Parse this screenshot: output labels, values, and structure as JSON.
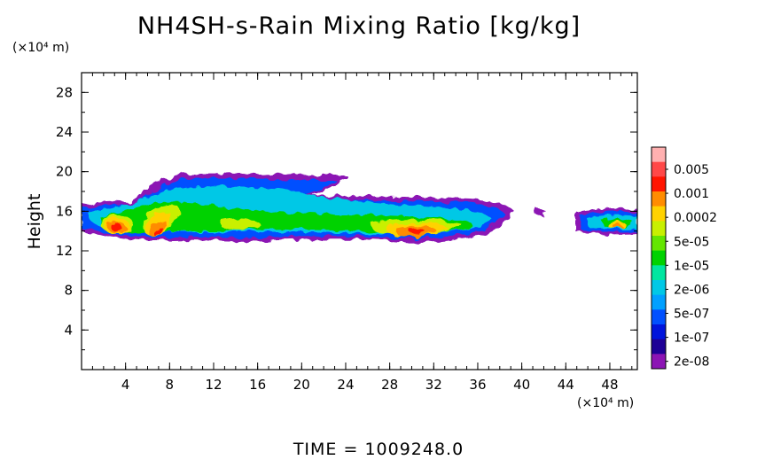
{
  "chart_data": {
    "type": "heatmap",
    "title": "NH4SH-s-Rain Mixing Ratio [kg/kg]",
    "xlabel": "",
    "ylabel": "Height",
    "x_unit": "(×10⁴ m)",
    "y_unit": "(×10⁴ m)",
    "xlim": [
      0,
      50.5
    ],
    "ylim": [
      0,
      30
    ],
    "x_ticks": [
      4,
      8,
      12,
      16,
      20,
      24,
      28,
      32,
      36,
      40,
      44,
      48
    ],
    "y_ticks": [
      4,
      8,
      12,
      16,
      20,
      24,
      28
    ],
    "colorbar": {
      "labels": [
        "0.005",
        "0.001",
        "0.0002",
        "5e-05",
        "1e-05",
        "2e-06",
        "5e-07",
        "1e-07",
        "2e-08"
      ],
      "colors": [
        "#ffb0b0",
        "#ff4848",
        "#ff1400",
        "#ff8c00",
        "#ffd200",
        "#c8f000",
        "#64e600",
        "#00d200",
        "#00e6a0",
        "#00c8e6",
        "#00a0ff",
        "#0050ff",
        "#0014dc",
        "#1e0096",
        "#8c14b4"
      ]
    },
    "regions": [
      {
        "name": "main-cloud-band",
        "x_range": [
          0,
          39.5
        ],
        "y_range": [
          12.8,
          19.8
        ],
        "core_level": "0.001",
        "core_centers_x": [
          3.5,
          7,
          30
        ]
      },
      {
        "name": "east-cloud-band",
        "x_range": [
          44.5,
          50.5
        ],
        "y_range": [
          13.5,
          16.5
        ],
        "core_level": "0.0002",
        "core_centers_x": [
          49
        ]
      }
    ],
    "time_label": "TIME =",
    "time_value": "1009248.0"
  }
}
